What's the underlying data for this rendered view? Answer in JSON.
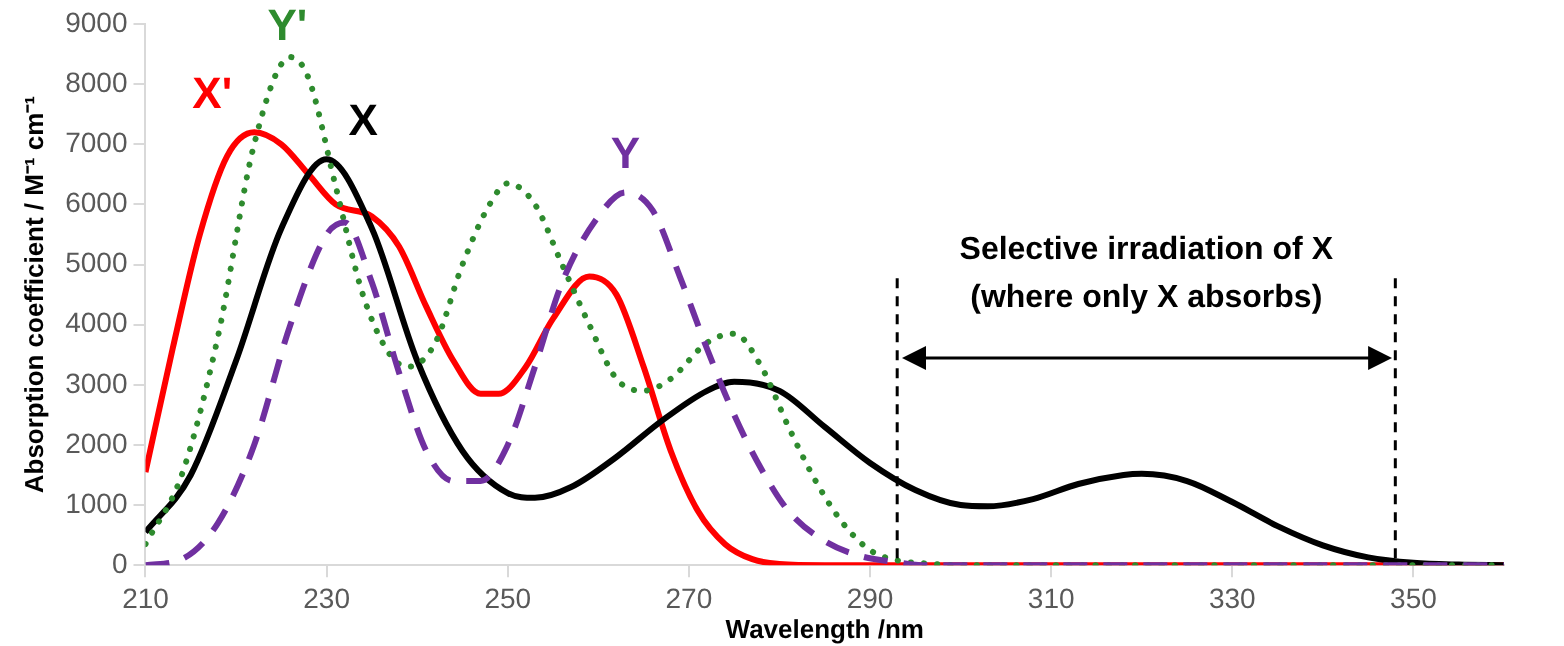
{
  "chart_data": {
    "type": "line",
    "xlabel": "Wavelength /nm",
    "ylabel": "Absorption coefficient / M⁻¹ cm⁻¹",
    "xlim": [
      210,
      360
    ],
    "xticks": [
      210,
      230,
      250,
      270,
      290,
      310,
      330,
      350
    ],
    "ylim": [
      0,
      9000
    ],
    "yticks": [
      0,
      1000,
      2000,
      3000,
      4000,
      5000,
      6000,
      7000,
      8000,
      9000
    ],
    "marker": "none",
    "ref_lines": [
      {
        "axis": "x",
        "value": 293,
        "line_style": "dashed",
        "color": "#000000"
      },
      {
        "axis": "x",
        "value": 348,
        "line_style": "dashed",
        "color": "#000000"
      }
    ],
    "annotations": [
      "Selective irradiation of X\n(where only X absorbs)"
    ],
    "series": [
      {
        "name": "Y",
        "color": "#7030a0",
        "line_style": "dashed",
        "x": [
          210,
          214,
          218,
          222,
          226,
          230,
          232,
          235,
          238,
          241,
          244,
          247,
          250,
          253,
          256,
          260,
          263,
          266,
          269,
          272,
          275,
          278,
          281,
          285,
          289,
          293,
          296,
          300,
          360
        ],
        "values": [
          0,
          100,
          700,
          2000,
          4000,
          5500,
          5700,
          4700,
          3200,
          1900,
          1400,
          1400,
          2000,
          3300,
          4700,
          5800,
          6200,
          5900,
          4800,
          3600,
          2500,
          1600,
          900,
          400,
          150,
          50,
          0,
          0,
          0
        ]
      },
      {
        "name": "Y'",
        "color": "#2e8b2e",
        "line_style": "dotted",
        "x": [
          210,
          214,
          218,
          222,
          226,
          228,
          231,
          234,
          237,
          239,
          242,
          245,
          248,
          250,
          253,
          256,
          259,
          262,
          265,
          268,
          272,
          275,
          278,
          281,
          284,
          287,
          290,
          293,
          296,
          300,
          360
        ],
        "values": [
          350,
          1500,
          3800,
          7000,
          8450,
          8100,
          6300,
          4500,
          3500,
          3300,
          3700,
          5000,
          6000,
          6350,
          6000,
          5000,
          4000,
          3100,
          2900,
          3100,
          3700,
          3850,
          3300,
          2300,
          1400,
          700,
          250,
          80,
          30,
          0,
          0
        ]
      },
      {
        "name": "X",
        "color": "#000000",
        "line_style": "solid",
        "x": [
          210,
          215,
          220,
          225,
          230,
          235,
          240,
          245,
          250,
          253,
          257,
          262,
          267,
          272,
          275,
          280,
          285,
          290,
          295,
          300,
          303,
          308,
          313,
          318,
          320,
          325,
          330,
          335,
          340,
          345,
          350,
          355,
          360
        ],
        "values": [
          550,
          1500,
          3400,
          5600,
          6750,
          5600,
          3400,
          1900,
          1200,
          1120,
          1300,
          1800,
          2400,
          2900,
          3050,
          2900,
          2300,
          1700,
          1250,
          1000,
          980,
          1100,
          1350,
          1500,
          1520,
          1400,
          1050,
          650,
          330,
          130,
          40,
          10,
          0
        ]
      },
      {
        "name": "X'",
        "color": "#ff0000",
        "line_style": "solid",
        "x": [
          210,
          213,
          216,
          219,
          222,
          225,
          228,
          231,
          235,
          238,
          241,
          244,
          247,
          249,
          252,
          255,
          259,
          262,
          265,
          268,
          271,
          274,
          277,
          280,
          285,
          360
        ],
        "values": [
          1550,
          3600,
          5500,
          6800,
          7200,
          7000,
          6500,
          6000,
          5800,
          5300,
          4300,
          3400,
          2850,
          2850,
          3300,
          4100,
          4800,
          4500,
          3300,
          1900,
          900,
          350,
          100,
          20,
          0,
          0
        ]
      }
    ]
  }
}
